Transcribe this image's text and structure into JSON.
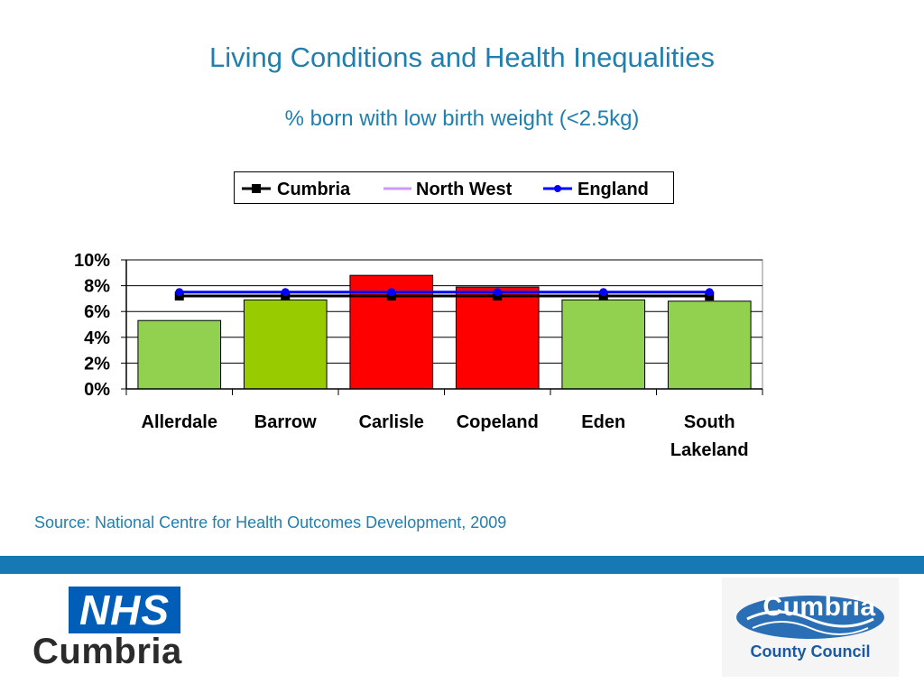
{
  "header": {
    "title": "Living Conditions and Health Inequalities",
    "subtitle": "% born with low birth weight (<2.5kg)"
  },
  "chart_data": {
    "type": "bar",
    "categories": [
      "Allerdale",
      "Barrow",
      "Carlisle",
      "Copeland",
      "Eden",
      "South Lakeland"
    ],
    "values": [
      5.3,
      6.9,
      8.8,
      7.9,
      6.9,
      6.8
    ],
    "bar_colors": [
      "#92d050",
      "#99cc00",
      "#ff0000",
      "#ff0000",
      "#92d050",
      "#92d050"
    ],
    "series": [
      {
        "name": "Cumbria",
        "values": [
          7.2,
          7.2,
          7.2,
          7.2,
          7.2,
          7.2
        ],
        "color": "#000000",
        "marker": "square"
      },
      {
        "name": "North West",
        "values": [
          7.5,
          7.5,
          7.5,
          7.5,
          7.5,
          7.5
        ],
        "color": "#cc99ff",
        "marker": "none"
      },
      {
        "name": "England",
        "values": [
          7.5,
          7.5,
          7.5,
          7.5,
          7.5,
          7.5
        ],
        "color": "#0000ff",
        "marker": "circle"
      }
    ],
    "y_ticks": [
      "0%",
      "2%",
      "4%",
      "6%",
      "8%",
      "10%"
    ],
    "ylim": [
      0,
      10
    ],
    "grid": true,
    "legend_position": "top"
  },
  "source": "Source: National Centre for Health Outcomes Development, 2009",
  "logos": {
    "nhs_box": "NHS",
    "nhs_name": "Cumbria",
    "council_name": "Cumbria",
    "council_sub": "County Council"
  },
  "colors": {
    "title": "#1f7fae",
    "band": "#1679b3",
    "nhs_blue": "#005eb8"
  }
}
